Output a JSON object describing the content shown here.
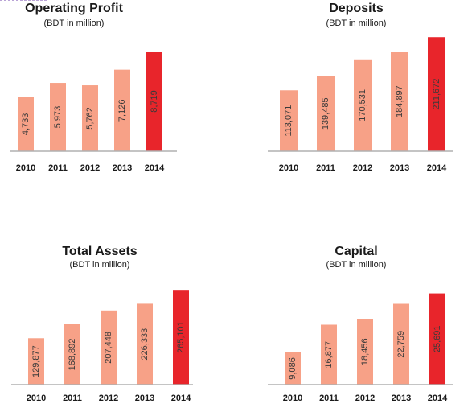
{
  "chart_data": [
    {
      "type": "bar",
      "title": "Operating Profit",
      "subtitle": "(BDT in million)",
      "categories": [
        "2010",
        "2011",
        "2012",
        "2013",
        "2014"
      ],
      "values": [
        4733,
        5973,
        5762,
        7126,
        8719
      ],
      "value_labels": [
        "4,733",
        "5,973",
        "5,762",
        "7,126",
        "8,719"
      ],
      "colors": [
        "#f7a187",
        "#f7a187",
        "#f7a187",
        "#f7a187",
        "#e8252b"
      ],
      "ylim": [
        0,
        9000
      ],
      "grid": false
    },
    {
      "type": "bar",
      "title": "Deposits",
      "subtitle": "(BDT in million)",
      "categories": [
        "2010",
        "2011",
        "2012",
        "2013",
        "2014"
      ],
      "values": [
        113071,
        139485,
        170531,
        184897,
        211672
      ],
      "value_labels": [
        "113,071",
        "139,485",
        "170,531",
        "184,897",
        "211,672"
      ],
      "colors": [
        "#f7a187",
        "#f7a187",
        "#f7a187",
        "#f7a187",
        "#e8252b"
      ],
      "ylim": [
        0,
        215000
      ],
      "grid": false
    },
    {
      "type": "bar",
      "title": "Total Assets",
      "subtitle": "(BDT in million)",
      "categories": [
        "2010",
        "2011",
        "2012",
        "2013",
        "2014"
      ],
      "values": [
        129877,
        168892,
        207448,
        226333,
        265101
      ],
      "value_labels": [
        "129,877",
        "168,892",
        "207,448",
        "226,333",
        "265,101"
      ],
      "colors": [
        "#f7a187",
        "#f7a187",
        "#f7a187",
        "#f7a187",
        "#e8252b"
      ],
      "ylim": [
        0,
        270000
      ],
      "grid": false
    },
    {
      "type": "bar",
      "title": "Capital",
      "subtitle": "(BDT in million)",
      "categories": [
        "2010",
        "2011",
        "2012",
        "2013",
        "2014"
      ],
      "values": [
        9086,
        16877,
        18456,
        22759,
        25691
      ],
      "value_labels": [
        "9,086",
        "16,877",
        "18,456",
        "22,759",
        "25,691"
      ],
      "colors": [
        "#f7a187",
        "#f7a187",
        "#f7a187",
        "#f7a187",
        "#e8252b"
      ],
      "ylim": [
        0,
        26500
      ],
      "grid": false
    }
  ]
}
